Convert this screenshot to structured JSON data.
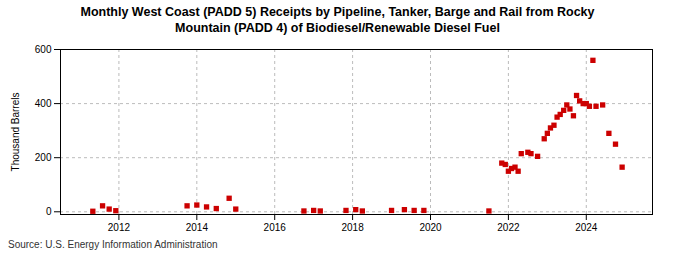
{
  "chart_data": {
    "type": "scatter",
    "title": "Monthly West Coast (PADD 5) Receipts by Pipeline, Tanker, Barge and Rail from Rocky\nMountain (PADD 4) of Biodiesel/Renewable Diesel Fuel",
    "ylabel": "Thousand Barrels",
    "source": "Source: U.S. Energy Information Administration",
    "color": "#cc0000",
    "marker": "square",
    "grid": true,
    "xlim": [
      2010.5,
      2025.7
    ],
    "xticks": [
      2012,
      2014,
      2016,
      2018,
      2020,
      2022,
      2024
    ],
    "ylim": [
      -10,
      600
    ],
    "yticks": [
      0,
      200,
      400,
      600
    ],
    "x": [
      2011.33,
      2011.58,
      2011.75,
      2011.92,
      2013.75,
      2014.0,
      2014.25,
      2014.5,
      2014.83,
      2015.0,
      2016.75,
      2017.0,
      2017.17,
      2017.83,
      2018.08,
      2018.25,
      2019.0,
      2019.33,
      2019.58,
      2019.83,
      2021.5,
      2021.83,
      2021.92,
      2022.0,
      2022.08,
      2022.17,
      2022.25,
      2022.33,
      2022.5,
      2022.58,
      2022.75,
      2022.92,
      2023.0,
      2023.08,
      2023.17,
      2023.25,
      2023.33,
      2023.42,
      2023.5,
      2023.58,
      2023.67,
      2023.75,
      2023.83,
      2023.92,
      2024.0,
      2024.08,
      2024.17,
      2024.25,
      2024.42,
      2024.58,
      2024.75,
      2024.92
    ],
    "values": [
      2,
      22,
      10,
      4,
      22,
      25,
      18,
      12,
      50,
      10,
      3,
      5,
      3,
      5,
      8,
      3,
      5,
      8,
      5,
      5,
      3,
      180,
      175,
      150,
      160,
      165,
      150,
      215,
      220,
      215,
      205,
      270,
      290,
      310,
      320,
      350,
      360,
      375,
      395,
      380,
      355,
      430,
      410,
      400,
      400,
      390,
      560,
      390,
      395,
      290,
      250,
      165
    ]
  }
}
